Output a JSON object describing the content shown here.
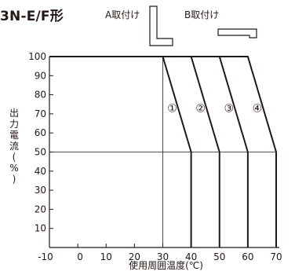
{
  "header": {
    "title": "3N-E/F形",
    "mount_a_label": "A取付け",
    "mount_b_label": "B取付け"
  },
  "chart_data": {
    "type": "line",
    "title": "",
    "xlabel": "使用周囲温度(℃)",
    "ylabel": "出力電流(%)",
    "xlim": [
      -10,
      70
    ],
    "ylim": [
      0,
      100
    ],
    "x_ticks": [
      -10,
      0,
      10,
      20,
      30,
      40,
      50,
      60,
      70
    ],
    "y_ticks": [
      10,
      20,
      30,
      40,
      50,
      60,
      70,
      80,
      90,
      100
    ],
    "grid": false,
    "reference_lines": [
      {
        "type": "horizontal",
        "y": 50
      }
    ],
    "series": [
      {
        "name": "①",
        "points": [
          [
            -10,
            100
          ],
          [
            30,
            100
          ],
          [
            40,
            50
          ],
          [
            40,
            0
          ]
        ]
      },
      {
        "name": "②",
        "points": [
          [
            -10,
            100
          ],
          [
            40,
            100
          ],
          [
            50,
            50
          ],
          [
            50,
            0
          ]
        ]
      },
      {
        "name": "③",
        "points": [
          [
            -10,
            100
          ],
          [
            50,
            100
          ],
          [
            60,
            50
          ],
          [
            60,
            0
          ]
        ]
      },
      {
        "name": "④",
        "points": [
          [
            -10,
            100
          ],
          [
            60,
            100
          ],
          [
            70,
            50
          ],
          [
            70,
            0
          ]
        ]
      }
    ],
    "guide_lines": [
      {
        "x": 30,
        "from": 0,
        "to": 100
      }
    ]
  },
  "style": {
    "line_color": "#231815"
  }
}
